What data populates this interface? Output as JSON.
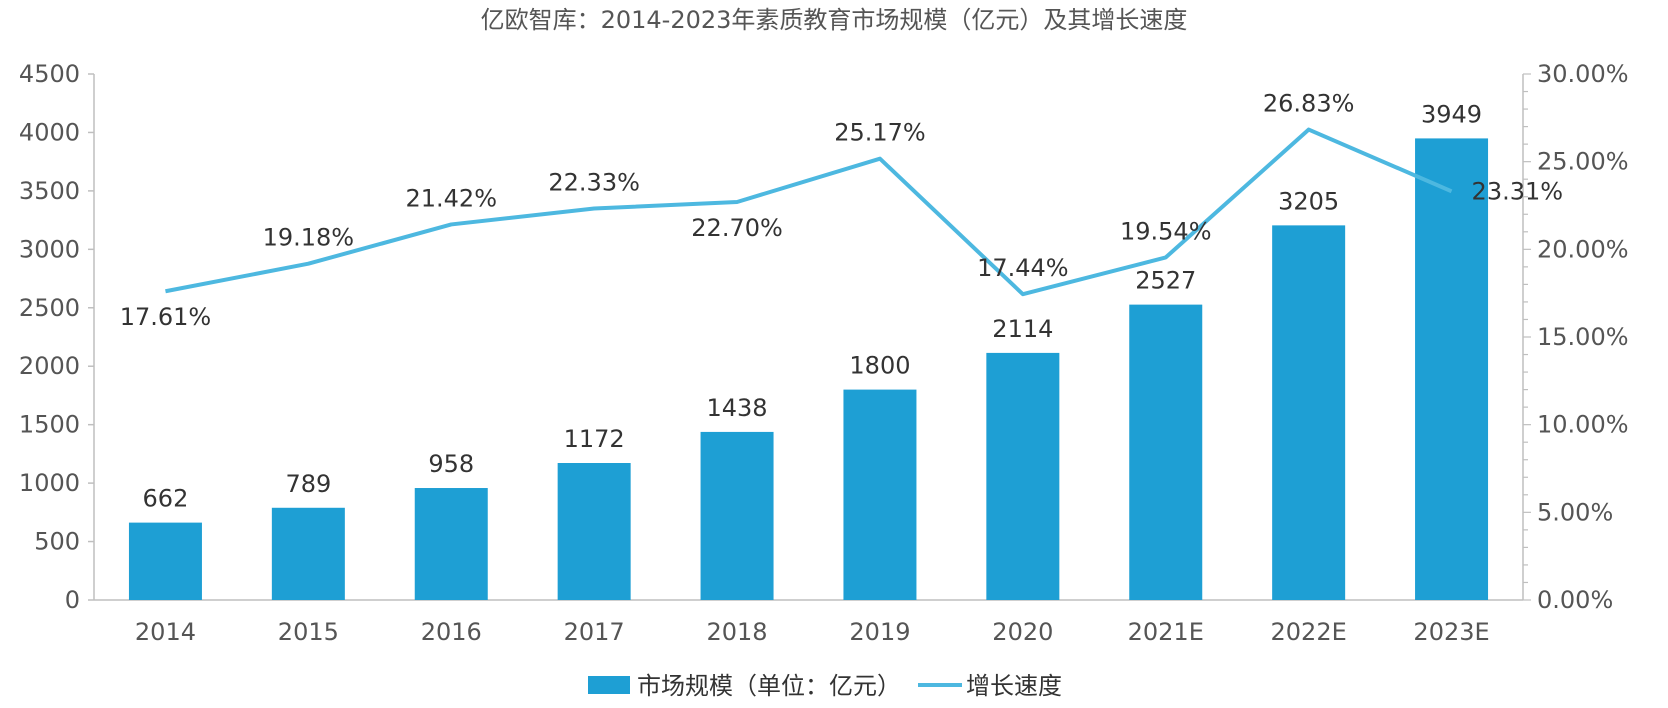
{
  "chart_data": {
    "type": "bar",
    "title": "亿欧智库：2014-2023年素质教育市场规模（亿元）及其增长速度",
    "categories": [
      "2014",
      "2015",
      "2016",
      "2017",
      "2018",
      "2019",
      "2020",
      "2021E",
      "2022E",
      "2023E"
    ],
    "series": [
      {
        "name": "市场规模（单位：亿元）",
        "type": "bar",
        "axis": "left",
        "color": "#1E9FD4",
        "values": [
          662,
          789,
          958,
          1172,
          1438,
          1800,
          2114,
          2527,
          3205,
          3949
        ],
        "labels": [
          "662",
          "789",
          "958",
          "1172",
          "1438",
          "1800",
          "2114",
          "2527",
          "3205",
          "3949"
        ]
      },
      {
        "name": "增长速度",
        "type": "line",
        "axis": "right",
        "color": "#4DB8E0",
        "values": [
          17.61,
          19.18,
          21.42,
          22.33,
          22.7,
          25.17,
          17.44,
          19.54,
          26.83,
          23.31
        ],
        "labels": [
          "17.61%",
          "19.18%",
          "21.42%",
          "22.33%",
          "22.70%",
          "25.17%",
          "17.44%",
          "19.54%",
          "26.83%",
          "23.31%"
        ],
        "label_positions": [
          "below",
          "above",
          "above",
          "above",
          "below",
          "above",
          "above",
          "above",
          "above",
          "right"
        ]
      }
    ],
    "y_left": {
      "min": 0,
      "max": 4500,
      "step": 500,
      "ticks": [
        "0",
        "500",
        "1000",
        "1500",
        "2000",
        "2500",
        "3000",
        "3500",
        "4000",
        "4500"
      ]
    },
    "y_right": {
      "min": 0,
      "max": 30,
      "step": 5,
      "ticks": [
        "0.00%",
        "5.00%",
        "10.00%",
        "15.00%",
        "20.00%",
        "25.00%",
        "30.00%"
      ]
    },
    "legend": {
      "position": "bottom",
      "items": [
        "市场规模（单位：亿元）",
        "增长速度"
      ]
    },
    "grid": false
  }
}
